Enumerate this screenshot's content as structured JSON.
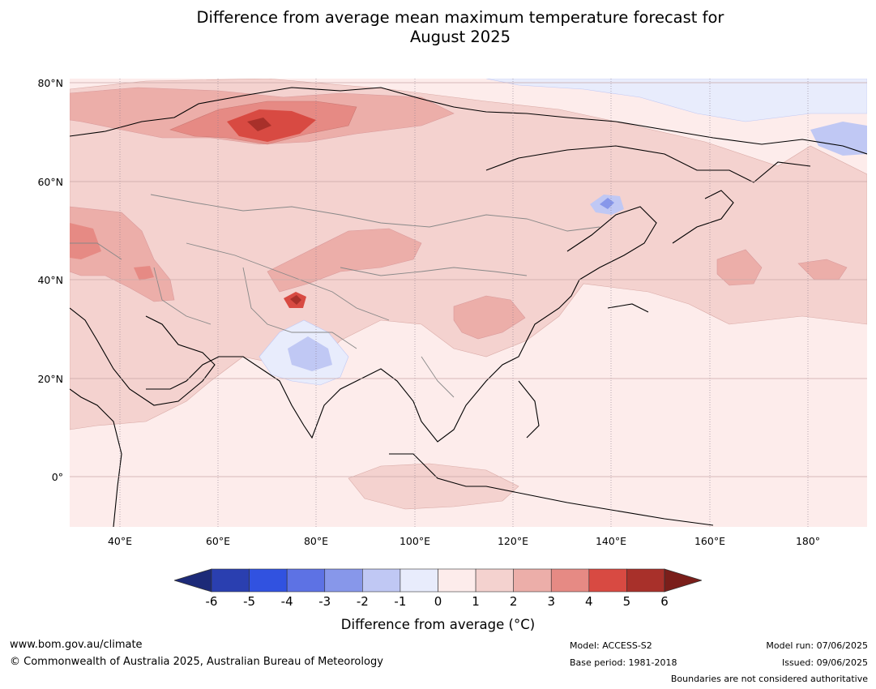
{
  "title_line1": "Difference from average mean maximum temperature forecast for",
  "title_line2": "August 2025",
  "latitude_labels": [
    "80°N",
    "60°N",
    "40°N",
    "20°N",
    "0°"
  ],
  "longitude_labels": [
    "40°E",
    "60°E",
    "80°E",
    "100°E",
    "120°E",
    "140°E",
    "160°E",
    "180°"
  ],
  "colorbar": {
    "ticks": [
      "-6",
      "-5",
      "-4",
      "-3",
      "-2",
      "-1",
      "0",
      "1",
      "2",
      "3",
      "4",
      "5",
      "6"
    ],
    "colors": [
      "#1c2a78",
      "#2a3fb0",
      "#3152e0",
      "#5d72e4",
      "#8797ea",
      "#c0c8f4",
      "#e8ecfc",
      "#fdeceb",
      "#f4d2cf",
      "#ecaea9",
      "#e68a84",
      "#d84a42",
      "#a8302a",
      "#7a1e1a"
    ],
    "label": "Difference from average (°C)"
  },
  "footer": {
    "url": "www.bom.gov.au/climate",
    "copyright": "© Commonwealth of Australia 2025, Australian Bureau of Meteorology",
    "model": "Model: ACCESS-S2",
    "base_period": "Base period: 1981-2018",
    "model_run": "Model run: 07/06/2025",
    "issued": "Issued: 09/06/2025",
    "disclaimer": "Boundaries are not considered authoritative"
  }
}
